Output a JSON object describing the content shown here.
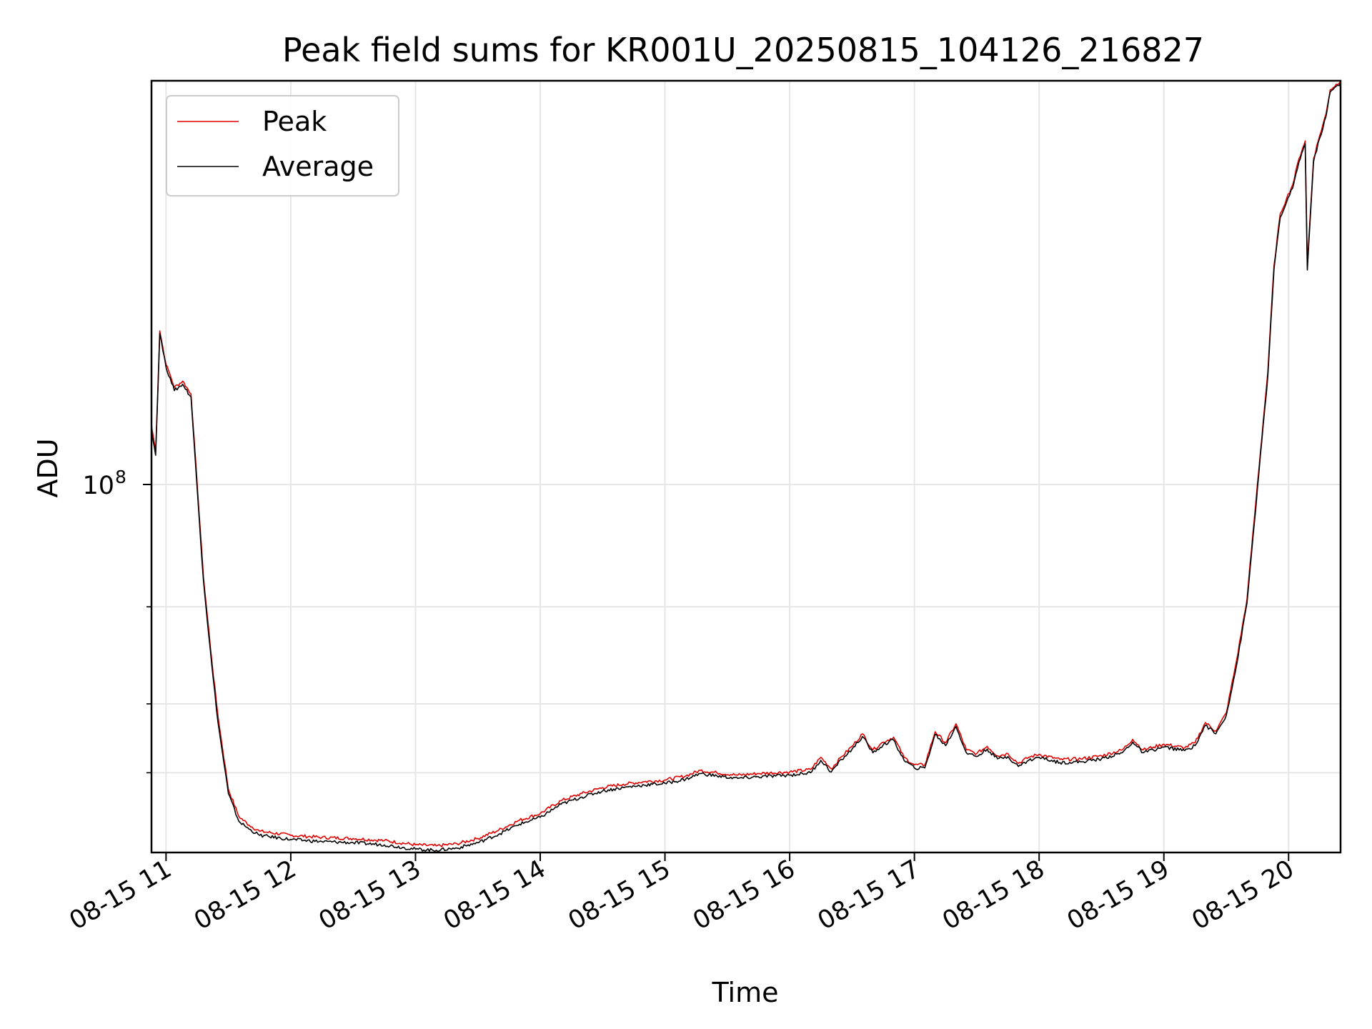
{
  "chart_data": {
    "type": "line",
    "title": "Peak field sums for KR001U_20250815_104126_216827",
    "xlabel": "Time",
    "ylabel": "ADU",
    "y_scale": "log",
    "grid": true,
    "legend_placement": "top-left",
    "xlim": [
      "08-15 10:53",
      "08-15 20:25"
    ],
    "ylim": [
      21500000,
      540000000
    ],
    "x_ticks": [
      "08-15 11",
      "08-15 12",
      "08-15 13",
      "08-15 14",
      "08-15 15",
      "08-15 16",
      "08-15 17",
      "08-15 18",
      "08-15 19",
      "08-15 20"
    ],
    "y_ticks": [
      {
        "label": "10",
        "exponent": "8",
        "value": 100000000
      }
    ],
    "y_minor_ticks": [
      30000000,
      40000000,
      60000000
    ],
    "x": [
      "10:53",
      "10:55",
      "10:57",
      "11:00",
      "11:02",
      "11:04",
      "11:08",
      "11:12",
      "11:15",
      "11:18",
      "11:22",
      "11:25",
      "11:30",
      "11:35",
      "11:40",
      "11:45",
      "12:00",
      "12:15",
      "12:30",
      "12:45",
      "13:00",
      "13:10",
      "13:20",
      "13:30",
      "13:40",
      "13:50",
      "14:00",
      "14:10",
      "14:20",
      "14:30",
      "14:40",
      "14:50",
      "15:00",
      "15:10",
      "15:17",
      "15:25",
      "15:35",
      "15:45",
      "16:00",
      "16:10",
      "16:15",
      "16:20",
      "16:25",
      "16:30",
      "16:35",
      "16:40",
      "16:45",
      "16:50",
      "16:55",
      "17:00",
      "17:05",
      "17:10",
      "17:15",
      "17:20",
      "17:25",
      "17:30",
      "17:35",
      "17:40",
      "17:45",
      "17:50",
      "17:55",
      "18:00",
      "18:10",
      "18:20",
      "18:30",
      "18:40",
      "18:45",
      "18:50",
      "18:55",
      "19:00",
      "19:10",
      "19:15",
      "19:20",
      "19:25",
      "19:30",
      "19:35",
      "19:40",
      "19:45",
      "19:50",
      "19:53",
      "19:56",
      "19:59",
      "20:02",
      "20:05",
      "20:07",
      "20:08",
      "20:09",
      "20:12",
      "20:15",
      "20:18",
      "20:20",
      "20:25"
    ],
    "series": [
      {
        "name": "Peak",
        "color": "#e00000",
        "values": [
          128,
          115,
          190,
          165,
          158,
          150,
          154,
          146,
          100,
          68,
          48,
          38,
          28,
          25,
          24.1,
          23.5,
          23.1,
          22.9,
          22.8,
          22.6,
          22.2,
          22.1,
          22.3,
          22.8,
          23.6,
          24.6,
          25.3,
          26.7,
          27.5,
          28.2,
          28.6,
          28.9,
          29.1,
          29.6,
          30.3,
          30.0,
          29.7,
          29.9,
          30.1,
          30.4,
          32.0,
          30.5,
          32.1,
          33.5,
          35.3,
          33.0,
          34.1,
          34.8,
          32.0,
          31.0,
          31.0,
          35.6,
          34.0,
          36.8,
          33.0,
          32.5,
          33.5,
          32.2,
          32.5,
          31.2,
          32.0,
          32.4,
          31.7,
          31.8,
          32.2,
          33.0,
          34.5,
          33.0,
          33.4,
          33.8,
          33.3,
          34.0,
          37.0,
          35.7,
          38.5,
          48,
          62,
          100,
          160,
          250,
          310,
          330,
          350,
          390,
          410,
          420,
          250,
          390,
          430,
          470,
          520,
          540
        ]
      },
      {
        "name": "Average",
        "color": "#000000",
        "values": [
          126,
          113,
          188,
          163,
          156,
          148,
          152,
          144,
          98,
          67,
          47,
          37,
          27.5,
          24.5,
          23.7,
          23.1,
          22.7,
          22.5,
          22.4,
          22.2,
          21.8,
          21.7,
          21.9,
          22.4,
          23.2,
          24.2,
          24.9,
          26.3,
          27.1,
          27.8,
          28.2,
          28.5,
          28.7,
          29.2,
          29.9,
          29.6,
          29.3,
          29.5,
          29.7,
          30.0,
          31.6,
          30.1,
          31.7,
          33.1,
          34.9,
          32.6,
          33.7,
          34.4,
          31.6,
          30.6,
          30.6,
          35.2,
          33.6,
          36.4,
          32.6,
          32.1,
          33.1,
          31.8,
          32.1,
          30.8,
          31.6,
          32.0,
          31.3,
          31.4,
          31.8,
          32.6,
          34.1,
          32.6,
          33.0,
          33.4,
          32.9,
          33.6,
          36.6,
          35.3,
          38.1,
          47,
          61,
          98,
          157,
          246,
          305,
          325,
          345,
          385,
          405,
          415,
          245,
          385,
          425,
          465,
          515,
          535
        ]
      }
    ]
  }
}
